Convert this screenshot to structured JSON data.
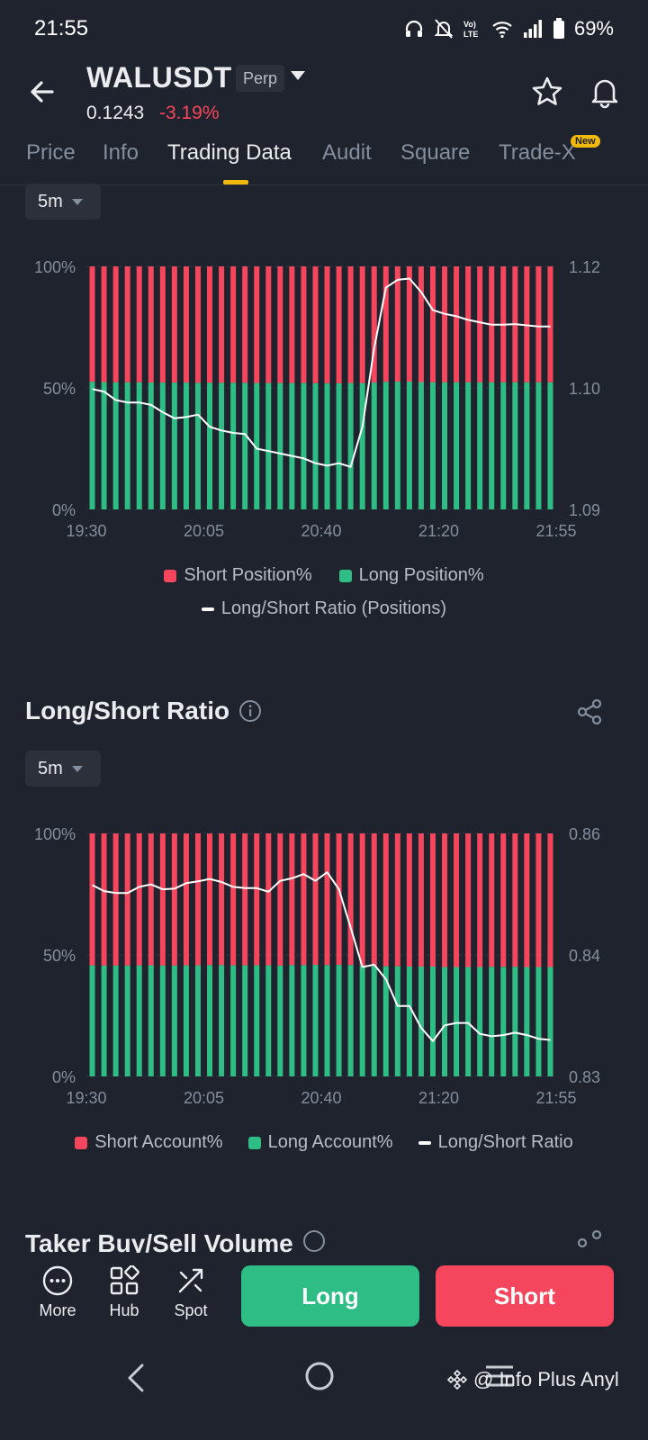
{
  "status_bar": {
    "time": "21:55",
    "battery": "69%"
  },
  "header": {
    "symbol": "WALUSDT",
    "badge": "Perp",
    "price": "0.1243",
    "change": "-3.19%"
  },
  "tabs": [
    {
      "label": "Price"
    },
    {
      "label": "Info"
    },
    {
      "label": "Trading Data",
      "active": true
    },
    {
      "label": "Audit"
    },
    {
      "label": "Square"
    },
    {
      "label": "Trade-X",
      "badge": "New"
    }
  ],
  "colors": {
    "short": "#f6465d",
    "long": "#2ebd85",
    "accent": "#f0b90b",
    "line": "#ffffff"
  },
  "top_chart": {
    "interval": "5m",
    "legend": {
      "short": "Short Position%",
      "long": "Long Position%",
      "line": "Long/Short Ratio (Positions)"
    }
  },
  "ratio_section": {
    "title": "Long/Short Ratio",
    "interval": "5m"
  },
  "next_section": {
    "title": "Taker Buy/Sell Volume"
  },
  "bottom_bar": {
    "more": "More",
    "hub": "Hub",
    "spot": "Spot",
    "long": "Long",
    "short": "Short"
  },
  "watermark": "@ Info Plus Anyl",
  "chart_data": [
    {
      "type": "bar",
      "stacked": true,
      "x_tick_labels": [
        "19:30",
        "20:05",
        "20:40",
        "21:20",
        "21:55"
      ],
      "y_left_ticks": [
        "100%",
        "50%",
        "0%"
      ],
      "y_right_ticks": [
        "1.12",
        "1.10",
        "1.09"
      ],
      "y_right_range": [
        1.09,
        1.12
      ],
      "grid": true,
      "legend_position": "bottom",
      "series": [
        {
          "name": "Long Position%",
          "color": "#2ebd85",
          "values": [
            52.5,
            52.4,
            52.3,
            52.3,
            52.3,
            52.2,
            52.2,
            52.2,
            52.2,
            52.1,
            52.1,
            52.1,
            52.1,
            52.1,
            52.0,
            52.0,
            52.0,
            52.0,
            52.0,
            51.9,
            51.9,
            51.9,
            52.0,
            52.0,
            52.2,
            52.5,
            52.6,
            52.6,
            52.4,
            52.3,
            52.3,
            52.3,
            52.3,
            52.3,
            52.3,
            52.3,
            52.3,
            52.3,
            52.3,
            52.3
          ]
        },
        {
          "name": "Short Position%",
          "color": "#f6465d",
          "values": [
            47.5,
            47.6,
            47.7,
            47.7,
            47.7,
            47.8,
            47.8,
            47.8,
            47.8,
            47.9,
            47.9,
            47.9,
            47.9,
            47.9,
            48.0,
            48.0,
            48.0,
            48.0,
            48.0,
            48.1,
            48.1,
            48.1,
            48.0,
            48.0,
            47.8,
            47.5,
            47.4,
            47.4,
            47.6,
            47.7,
            47.7,
            47.7,
            47.7,
            47.7,
            47.7,
            47.7,
            47.7,
            47.7,
            47.7,
            47.7
          ]
        },
        {
          "name": "Long/Short Ratio (Positions)",
          "color": "#ffffff",
          "axis": "right",
          "values": [
            1.0999,
            1.0997,
            1.099,
            1.0988,
            1.0988,
            1.0986,
            1.098,
            1.0975,
            1.0976,
            1.0978,
            1.0968,
            1.0965,
            1.0963,
            1.0962,
            1.095,
            1.0948,
            1.0946,
            1.0944,
            1.0942,
            1.0938,
            1.0936,
            1.0938,
            1.0935,
            1.0968,
            1.1065,
            1.1165,
            1.1178,
            1.118,
            1.1158,
            1.1128,
            1.1122,
            1.1118,
            1.1112,
            1.1108,
            1.1104,
            1.1104,
            1.1105,
            1.1103,
            1.1101,
            1.1101
          ]
        }
      ]
    },
    {
      "type": "bar",
      "stacked": true,
      "x_tick_labels": [
        "19:30",
        "20:05",
        "20:40",
        "21:20",
        "21:55"
      ],
      "y_left_ticks": [
        "100%",
        "50%",
        "0%"
      ],
      "y_right_ticks": [
        "0.86",
        "0.84",
        "0.83"
      ],
      "y_right_range": [
        0.83,
        0.86
      ],
      "grid": true,
      "legend_position": "bottom",
      "series": [
        {
          "name": "Long Account%",
          "color": "#2ebd85",
          "values": [
            45.7,
            45.6,
            45.6,
            45.6,
            45.7,
            45.7,
            45.6,
            45.6,
            45.7,
            45.7,
            45.8,
            45.8,
            45.7,
            45.7,
            45.7,
            45.7,
            45.6,
            45.8,
            45.8,
            45.9,
            45.8,
            45.9,
            45.8,
            45.6,
            45.4,
            45.3,
            45.3,
            45.2,
            45.2,
            45.2,
            45.0,
            45.0,
            45.0,
            45.0,
            45.1,
            45.1,
            45.1,
            45.0,
            45.0,
            45.0
          ]
        },
        {
          "name": "Short Account%",
          "color": "#f6465d",
          "values": [
            54.3,
            54.4,
            54.4,
            54.4,
            54.3,
            54.3,
            54.4,
            54.4,
            54.3,
            54.3,
            54.2,
            54.2,
            54.3,
            54.3,
            54.3,
            54.3,
            54.4,
            54.2,
            54.2,
            54.1,
            54.2,
            54.1,
            54.2,
            54.4,
            54.6,
            54.7,
            54.7,
            54.8,
            54.8,
            54.8,
            55.0,
            55.0,
            55.0,
            55.0,
            54.9,
            54.9,
            54.9,
            55.0,
            55.0,
            55.0
          ]
        },
        {
          "name": "Long/Short Ratio",
          "color": "#ffffff",
          "axis": "right",
          "values": [
            0.8515,
            0.8505,
            0.8502,
            0.8502,
            0.8512,
            0.8516,
            0.8508,
            0.8509,
            0.8518,
            0.8521,
            0.8525,
            0.852,
            0.8512,
            0.851,
            0.851,
            0.8504,
            0.8522,
            0.8526,
            0.8533,
            0.8522,
            0.8536,
            0.8508,
            0.8445,
            0.839,
            0.8392,
            0.838,
            0.8358,
            0.8358,
            0.834,
            0.8329,
            0.8342,
            0.8344,
            0.8344,
            0.8335,
            0.8333,
            0.8334,
            0.8336,
            0.8334,
            0.8331,
            0.833
          ]
        }
      ]
    }
  ]
}
